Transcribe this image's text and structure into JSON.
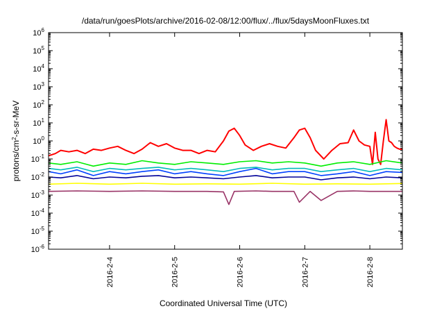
{
  "chart_data": {
    "type": "line",
    "title": "/data/run/goesPlots/archive/2016-02-08/12:00/flux/../flux/5daysMoonFluxes.txt",
    "xlabel": "Coordinated Universal Time (UTC)",
    "ylabel": "protons/cm²-s-sr-MeV",
    "ylabel_base": "protons/cm",
    "ylabel_sup": "2",
    "ylabel_rest": "-s-sr-MeV",
    "yscale": "log",
    "ylim": [
      1e-06,
      1000000.0
    ],
    "xlim": [
      "2016-02-03 01:30",
      "2016-02-08 12:00"
    ],
    "grid": false,
    "y_ticks": [
      {
        "exp": "-6",
        "value": 1e-06
      },
      {
        "exp": "-5",
        "value": 1e-05
      },
      {
        "exp": "-4",
        "value": 0.0001
      },
      {
        "exp": "-3",
        "value": 0.001
      },
      {
        "exp": "-2",
        "value": 0.01
      },
      {
        "exp": "-1",
        "value": 0.1
      },
      {
        "exp": "0",
        "value": 1
      },
      {
        "exp": "1",
        "value": 10
      },
      {
        "exp": "2",
        "value": 100
      },
      {
        "exp": "3",
        "value": 1000
      },
      {
        "exp": "4",
        "value": 10000
      },
      {
        "exp": "5",
        "value": 100000
      },
      {
        "exp": "6",
        "value": 1000000
      }
    ],
    "x_ticks": [
      {
        "label": "2016-2-4",
        "date": "2016-02-04"
      },
      {
        "label": "2016-2-5",
        "date": "2016-02-05"
      },
      {
        "label": "2016-2-6",
        "date": "2016-02-06"
      },
      {
        "label": "2016-2-7",
        "date": "2016-02-07"
      },
      {
        "label": "2016-2-8",
        "date": "2016-02-08"
      }
    ],
    "series": [
      {
        "color": "#ff0000",
        "x": [
          "2016-02-03 01:30",
          "2016-02-03 04:00",
          "2016-02-03 06:00",
          "2016-02-03 09:00",
          "2016-02-03 12:00",
          "2016-02-03 15:00",
          "2016-02-03 18:00",
          "2016-02-03 21:00",
          "2016-02-04 00:00",
          "2016-02-04 03:00",
          "2016-02-04 06:00",
          "2016-02-04 09:00",
          "2016-02-04 12:00",
          "2016-02-04 15:00",
          "2016-02-04 18:00",
          "2016-02-04 21:00",
          "2016-02-05 00:00",
          "2016-02-05 03:00",
          "2016-02-05 06:00",
          "2016-02-05 09:00",
          "2016-02-05 12:00",
          "2016-02-05 15:00",
          "2016-02-05 18:00",
          "2016-02-05 20:00",
          "2016-02-05 22:00",
          "2016-02-06 00:00",
          "2016-02-06 02:00",
          "2016-02-06 05:00",
          "2016-02-06 08:00",
          "2016-02-06 11:00",
          "2016-02-06 14:00",
          "2016-02-06 17:00",
          "2016-02-06 20:00",
          "2016-02-06 22:00",
          "2016-02-07 00:00",
          "2016-02-07 02:00",
          "2016-02-07 04:00",
          "2016-02-07 07:00",
          "2016-02-07 10:00",
          "2016-02-07 13:00",
          "2016-02-07 16:00",
          "2016-02-07 18:00",
          "2016-02-07 20:00",
          "2016-02-07 22:00",
          "2016-02-08 00:00",
          "2016-02-08 01:00",
          "2016-02-08 02:00",
          "2016-02-08 03:00",
          "2016-02-08 04:00",
          "2016-02-08 05:00",
          "2016-02-08 06:00",
          "2016-02-08 07:00",
          "2016-02-08 08:00",
          "2016-02-08 09:00",
          "2016-02-08 10:00",
          "2016-02-08 11:00",
          "2016-02-08 12:00"
        ],
        "y": [
          0.15,
          0.2,
          0.3,
          0.25,
          0.3,
          0.2,
          0.35,
          0.3,
          0.4,
          0.5,
          0.3,
          0.2,
          0.35,
          0.8,
          0.5,
          0.7,
          0.4,
          0.3,
          0.3,
          0.2,
          0.3,
          0.25,
          1.0,
          3.5,
          5.0,
          2.0,
          0.6,
          0.3,
          0.5,
          0.7,
          0.5,
          0.4,
          1.5,
          4.0,
          5.0,
          1.5,
          0.3,
          0.1,
          0.3,
          0.7,
          0.8,
          4.0,
          1.0,
          0.6,
          0.5,
          0.05,
          3.0,
          0.1,
          0.05,
          1.0,
          15.0,
          1.0,
          0.8,
          0.5,
          0.4,
          0.35,
          0.35
        ]
      },
      {
        "color": "#00ee00",
        "x": [
          "2016-02-03 01:30",
          "2016-02-03 06:00",
          "2016-02-03 12:00",
          "2016-02-03 18:00",
          "2016-02-04 00:00",
          "2016-02-04 06:00",
          "2016-02-04 12:00",
          "2016-02-04 18:00",
          "2016-02-05 00:00",
          "2016-02-05 06:00",
          "2016-02-05 12:00",
          "2016-02-05 18:00",
          "2016-02-06 00:00",
          "2016-02-06 06:00",
          "2016-02-06 12:00",
          "2016-02-06 18:00",
          "2016-02-07 00:00",
          "2016-02-07 06:00",
          "2016-02-07 12:00",
          "2016-02-07 18:00",
          "2016-02-08 00:00",
          "2016-02-08 06:00",
          "2016-02-08 12:00"
        ],
        "y": [
          0.06,
          0.05,
          0.07,
          0.04,
          0.06,
          0.05,
          0.08,
          0.06,
          0.05,
          0.07,
          0.06,
          0.05,
          0.07,
          0.08,
          0.06,
          0.07,
          0.06,
          0.04,
          0.06,
          0.07,
          0.05,
          0.08,
          0.06
        ]
      },
      {
        "color": "#00bbbb",
        "x": [
          "2016-02-03 01:30",
          "2016-02-03 06:00",
          "2016-02-03 12:00",
          "2016-02-03 18:00",
          "2016-02-04 00:00",
          "2016-02-04 06:00",
          "2016-02-04 12:00",
          "2016-02-04 18:00",
          "2016-02-05 00:00",
          "2016-02-05 06:00",
          "2016-02-05 12:00",
          "2016-02-05 18:00",
          "2016-02-06 00:00",
          "2016-02-06 06:00",
          "2016-02-06 12:00",
          "2016-02-06 18:00",
          "2016-02-07 00:00",
          "2016-02-07 06:00",
          "2016-02-07 12:00",
          "2016-02-07 18:00",
          "2016-02-08 00:00",
          "2016-02-08 06:00",
          "2016-02-08 12:00"
        ],
        "y": [
          0.03,
          0.025,
          0.035,
          0.02,
          0.03,
          0.025,
          0.03,
          0.035,
          0.025,
          0.03,
          0.025,
          0.02,
          0.03,
          0.035,
          0.025,
          0.03,
          0.03,
          0.02,
          0.025,
          0.03,
          0.02,
          0.03,
          0.025
        ]
      },
      {
        "color": "#0040ff",
        "x": [
          "2016-02-03 01:30",
          "2016-02-03 06:00",
          "2016-02-03 12:00",
          "2016-02-03 18:00",
          "2016-02-04 00:00",
          "2016-02-04 06:00",
          "2016-02-04 12:00",
          "2016-02-04 18:00",
          "2016-02-05 00:00",
          "2016-02-05 06:00",
          "2016-02-05 12:00",
          "2016-02-05 18:00",
          "2016-02-06 00:00",
          "2016-02-06 06:00",
          "2016-02-06 12:00",
          "2016-02-06 18:00",
          "2016-02-07 00:00",
          "2016-02-07 06:00",
          "2016-02-07 12:00",
          "2016-02-07 18:00",
          "2016-02-08 00:00",
          "2016-02-08 06:00",
          "2016-02-08 12:00"
        ],
        "y": [
          0.02,
          0.015,
          0.025,
          0.012,
          0.02,
          0.015,
          0.02,
          0.025,
          0.015,
          0.02,
          0.015,
          0.012,
          0.02,
          0.03,
          0.015,
          0.02,
          0.02,
          0.012,
          0.015,
          0.02,
          0.012,
          0.02,
          0.018
        ]
      },
      {
        "color": "#000099",
        "x": [
          "2016-02-03 01:30",
          "2016-02-03 06:00",
          "2016-02-03 12:00",
          "2016-02-03 18:00",
          "2016-02-04 00:00",
          "2016-02-04 06:00",
          "2016-02-04 12:00",
          "2016-02-04 18:00",
          "2016-02-05 00:00",
          "2016-02-05 06:00",
          "2016-02-05 12:00",
          "2016-02-05 18:00",
          "2016-02-06 00:00",
          "2016-02-06 06:00",
          "2016-02-06 12:00",
          "2016-02-06 18:00",
          "2016-02-07 00:00",
          "2016-02-07 06:00",
          "2016-02-07 12:00",
          "2016-02-07 18:00",
          "2016-02-08 00:00",
          "2016-02-08 06:00",
          "2016-02-08 12:00"
        ],
        "y": [
          0.01,
          0.009,
          0.012,
          0.008,
          0.01,
          0.009,
          0.011,
          0.012,
          0.009,
          0.01,
          0.009,
          0.008,
          0.01,
          0.012,
          0.009,
          0.01,
          0.01,
          0.007,
          0.009,
          0.01,
          0.008,
          0.01,
          0.009
        ]
      },
      {
        "color": "#ffff00",
        "x": [
          "2016-02-03 01:30",
          "2016-02-03 12:00",
          "2016-02-04 00:00",
          "2016-02-04 12:00",
          "2016-02-05 00:00",
          "2016-02-05 12:00",
          "2016-02-06 00:00",
          "2016-02-06 12:00",
          "2016-02-07 00:00",
          "2016-02-07 12:00",
          "2016-02-08 00:00",
          "2016-02-08 12:00"
        ],
        "y": [
          0.004,
          0.0045,
          0.004,
          0.0045,
          0.004,
          0.0042,
          0.004,
          0.0045,
          0.004,
          0.0042,
          0.004,
          0.0044
        ]
      },
      {
        "color": "#993366",
        "x": [
          "2016-02-03 01:30",
          "2016-02-03 12:00",
          "2016-02-04 00:00",
          "2016-02-04 12:00",
          "2016-02-05 00:00",
          "2016-02-05 12:00",
          "2016-02-05 18:00",
          "2016-02-05 20:00",
          "2016-02-05 22:00",
          "2016-02-06 06:00",
          "2016-02-06 12:00",
          "2016-02-06 20:00",
          "2016-02-06 22:00",
          "2016-02-07 02:00",
          "2016-02-07 06:00",
          "2016-02-07 12:00",
          "2016-02-07 18:00",
          "2016-02-08 00:00",
          "2016-02-08 06:00",
          "2016-02-08 12:00"
        ],
        "y": [
          0.0016,
          0.0017,
          0.0016,
          0.0017,
          0.0016,
          0.0016,
          0.0015,
          0.0003,
          0.0016,
          0.0017,
          0.0016,
          0.0016,
          0.0004,
          0.0016,
          0.0005,
          0.0016,
          0.0017,
          0.0016,
          0.0016,
          0.0016
        ]
      }
    ]
  }
}
